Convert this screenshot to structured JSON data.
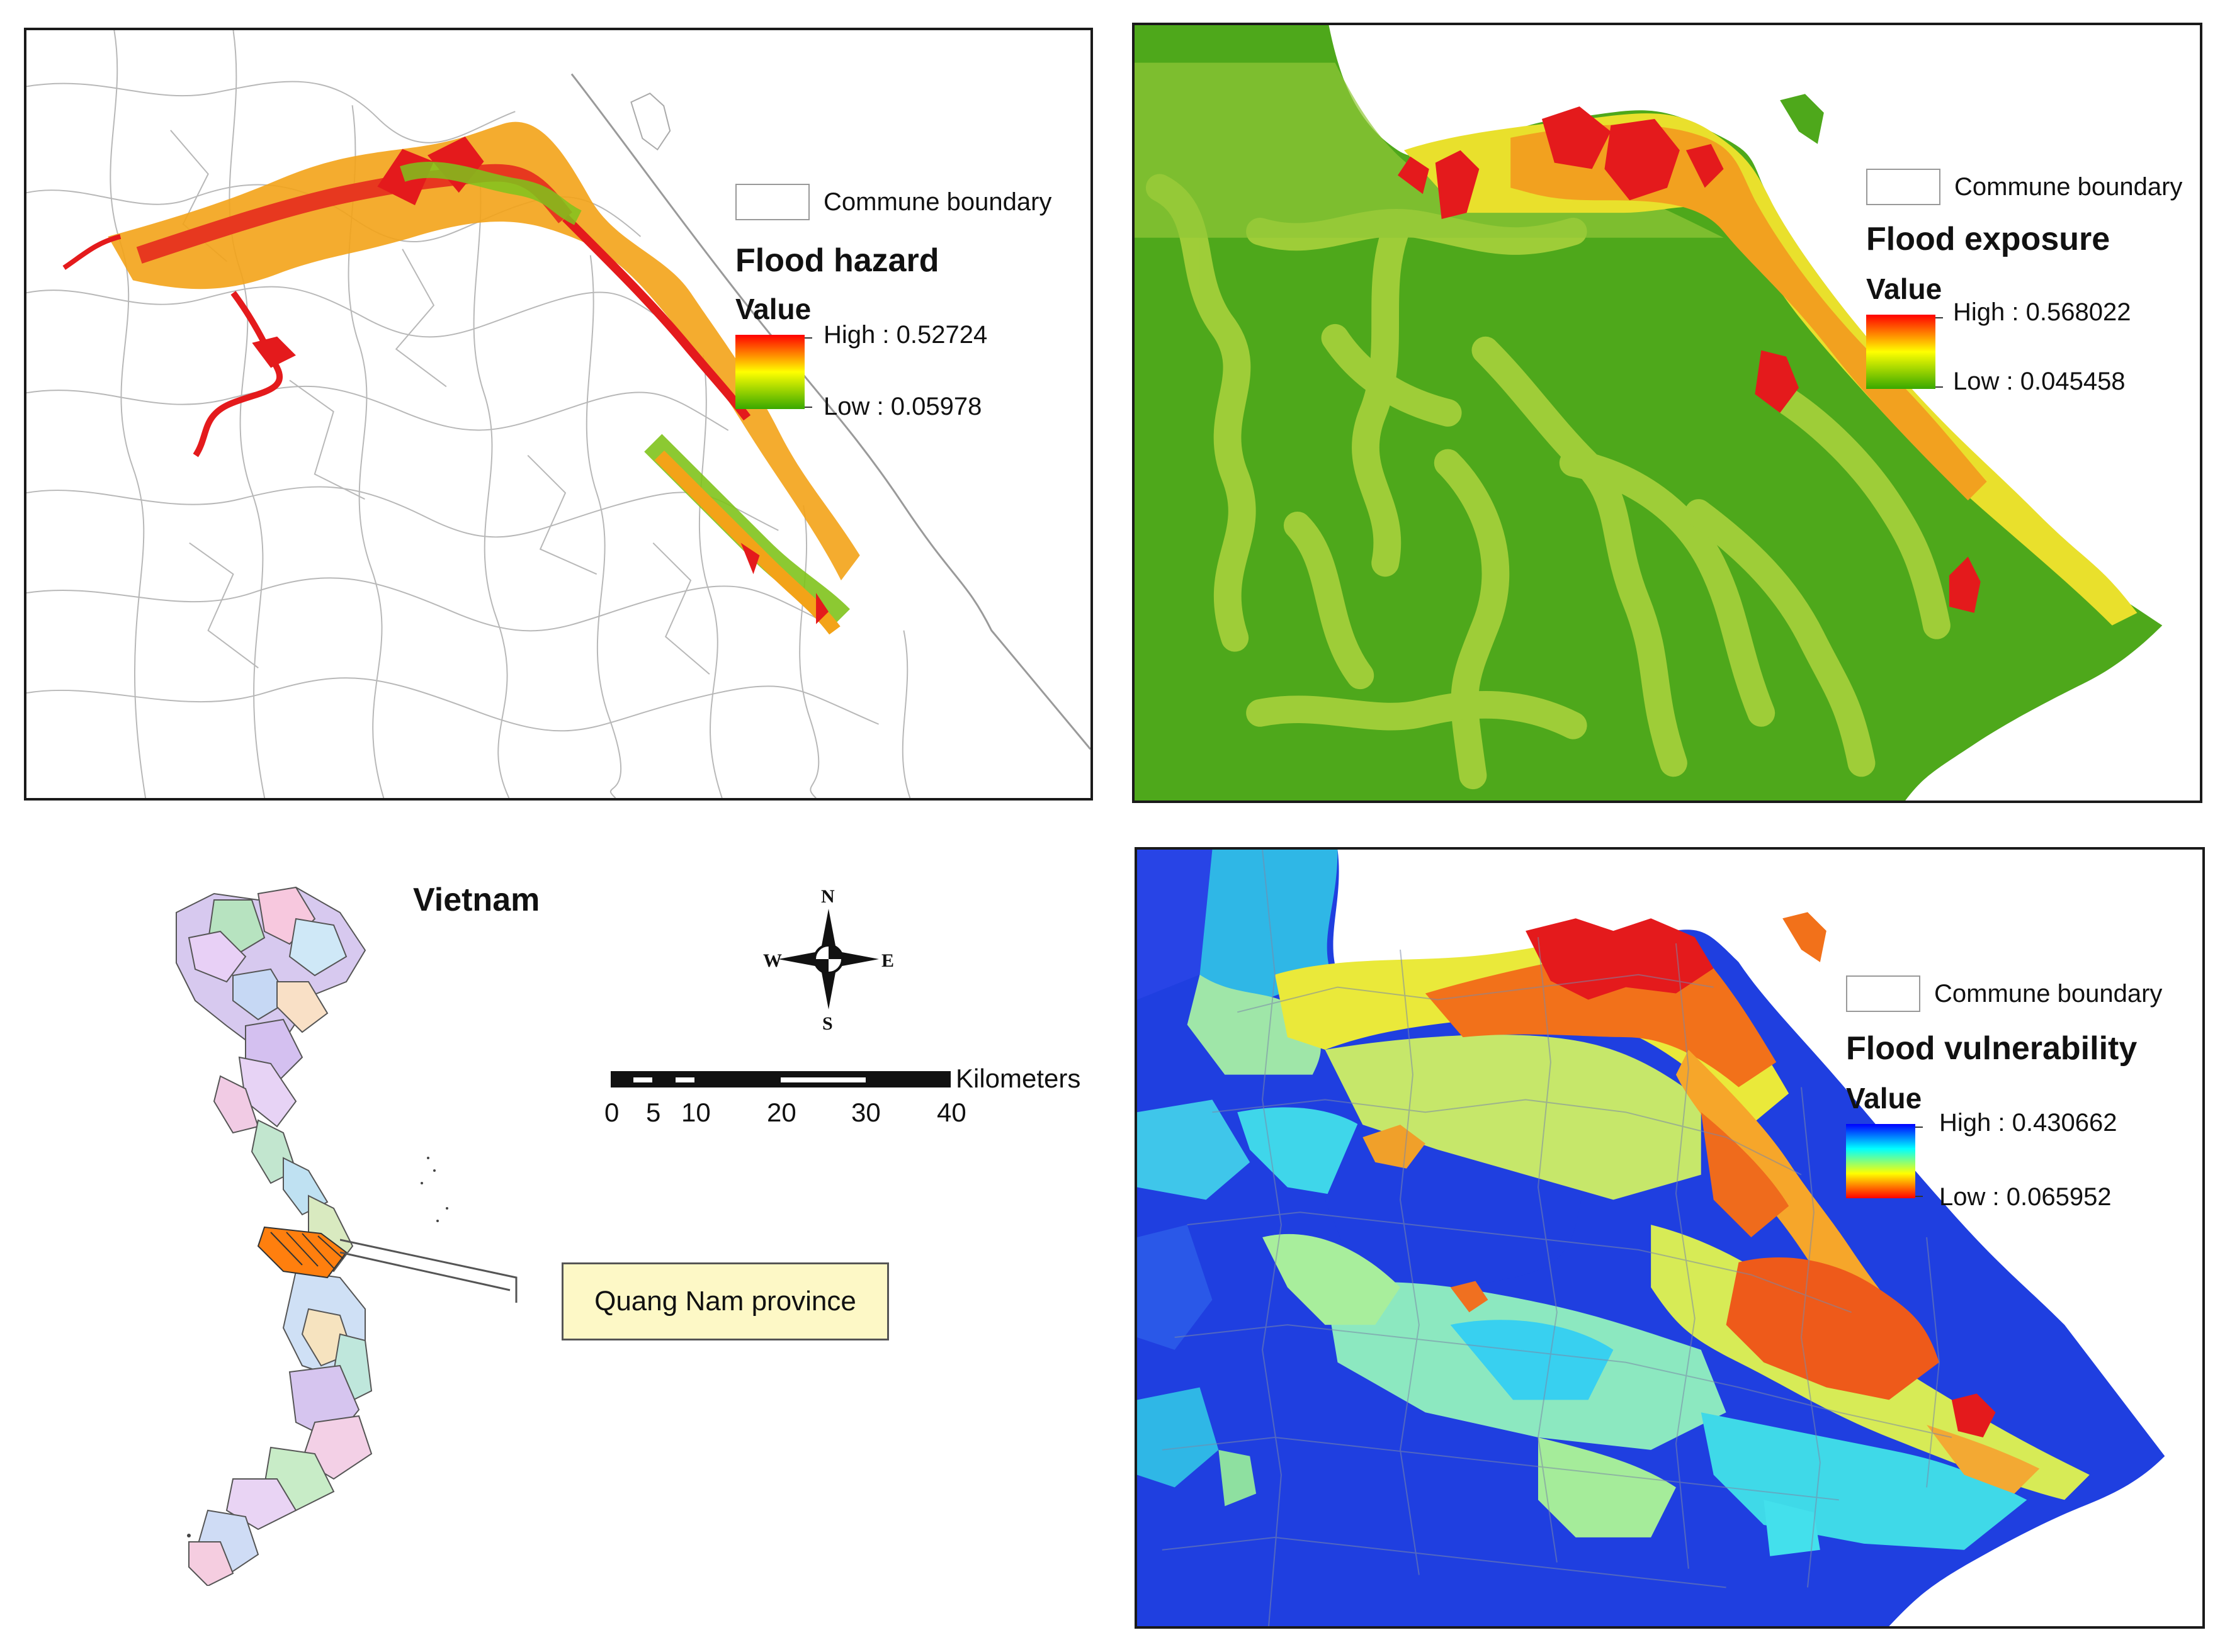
{
  "panels": {
    "hazard": {
      "boundary_label": "Commune boundary",
      "title": "Flood hazard",
      "value_label": "Value",
      "high": "High : 0.52724",
      "low": "Low : 0.05978",
      "ramp_colors": [
        "#ff0000",
        "#ffff00",
        "#38a800"
      ]
    },
    "exposure": {
      "boundary_label": "Commune boundary",
      "title": "Flood exposure",
      "value_label": "Value",
      "high": "High : 0.568022",
      "low": "Low : 0.045458",
      "ramp_colors": [
        "#ff0000",
        "#ffff00",
        "#38a800"
      ]
    },
    "vulnerability": {
      "boundary_label": "Commune boundary",
      "title": "Flood vulnerability",
      "value_label": "Value",
      "high": "High : 0.430662",
      "low": "Low : 0.065952",
      "ramp_colors": [
        "#0000ff",
        "#00ffff",
        "#ffff00",
        "#ff0000"
      ]
    }
  },
  "locator": {
    "country": "Vietnam",
    "callout": "Quang Nam province",
    "highlight_color": "#ff7f0e"
  },
  "compass": {
    "n": "N",
    "s": "S",
    "e": "E",
    "w": "W"
  },
  "scale_bar": {
    "unit": "Kilometers",
    "ticks": [
      "0",
      "5",
      "10",
      "20",
      "30",
      "40"
    ]
  }
}
